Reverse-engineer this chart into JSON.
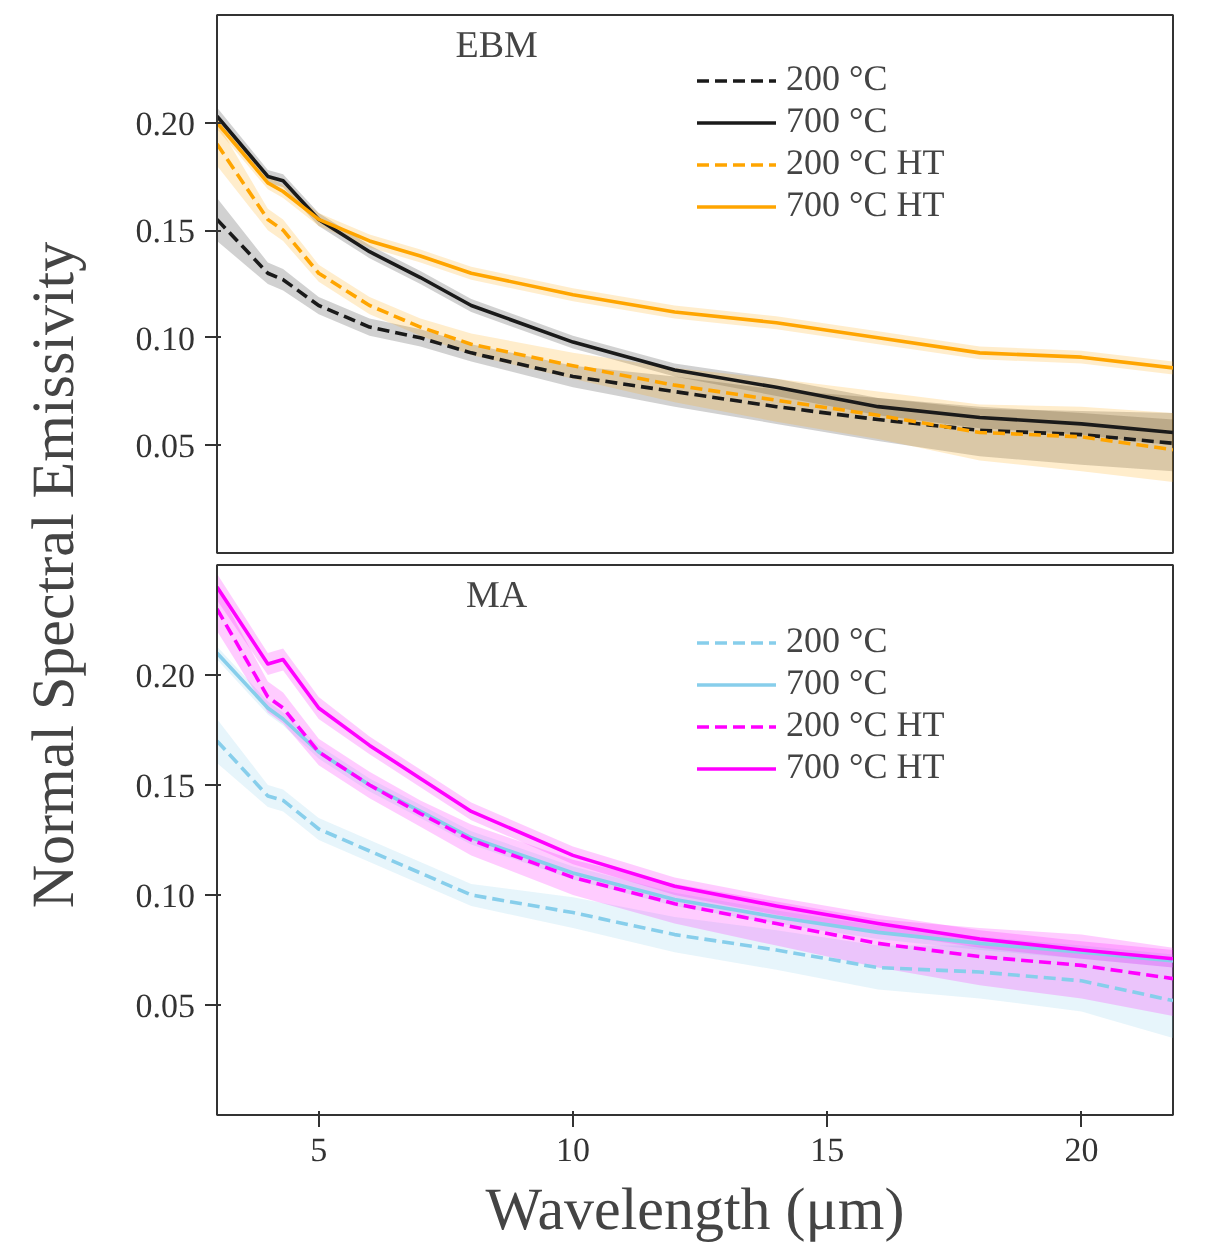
{
  "chart_data": [
    {
      "type": "line",
      "title": "EBM",
      "ylabel": "Normal Spectral Emissivity",
      "xlim": [
        3,
        21.8
      ],
      "ylim": [
        0,
        0.25
      ],
      "yticks": [
        {
          "value": 0.05,
          "label": "0.05"
        },
        {
          "value": 0.1,
          "label": "0.10"
        },
        {
          "value": 0.15,
          "label": "0.15"
        },
        {
          "value": 0.2,
          "label": "0.20"
        }
      ],
      "xticks": [
        5,
        10,
        15,
        20
      ],
      "tick_labels": "y",
      "grid": false,
      "legend": "top right",
      "x": [
        3,
        4,
        4.3,
        5,
        6,
        7,
        8,
        10,
        12,
        14,
        16,
        18,
        20,
        21.8
      ],
      "series": [
        {
          "name": "200 °C",
          "color": "#1a1a1a",
          "line_style": "dashed",
          "values": [
            0.155,
            0.13,
            0.127,
            0.115,
            0.105,
            0.1,
            0.093,
            0.082,
            0.075,
            0.068,
            0.062,
            0.057,
            0.055,
            0.051
          ],
          "lower": [
            0.145,
            0.125,
            0.122,
            0.111,
            0.101,
            0.096,
            0.089,
            0.077,
            0.068,
            0.06,
            0.052,
            0.045,
            0.041,
            0.038
          ],
          "upper": [
            0.165,
            0.135,
            0.132,
            0.119,
            0.109,
            0.104,
            0.097,
            0.087,
            0.082,
            0.076,
            0.072,
            0.067,
            0.066,
            0.065
          ]
        },
        {
          "name": "700 °C",
          "color": "#1a1a1a",
          "line_style": "solid",
          "values": [
            0.203,
            0.175,
            0.173,
            0.155,
            0.14,
            0.128,
            0.115,
            0.098,
            0.085,
            0.077,
            0.068,
            0.063,
            0.06,
            0.056
          ],
          "lower": [
            0.199,
            0.172,
            0.17,
            0.152,
            0.137,
            0.125,
            0.112,
            0.095,
            0.082,
            0.073,
            0.064,
            0.058,
            0.055,
            0.05
          ],
          "upper": [
            0.207,
            0.178,
            0.176,
            0.158,
            0.143,
            0.131,
            0.118,
            0.101,
            0.088,
            0.081,
            0.072,
            0.068,
            0.065,
            0.062
          ]
        },
        {
          "name": "200 °C HT",
          "color": "#ffa500",
          "line_style": "dashed",
          "values": [
            0.19,
            0.155,
            0.15,
            0.13,
            0.115,
            0.105,
            0.097,
            0.087,
            0.078,
            0.071,
            0.064,
            0.056,
            0.054,
            0.048
          ],
          "lower": [
            0.18,
            0.15,
            0.145,
            0.126,
            0.111,
            0.101,
            0.092,
            0.081,
            0.07,
            0.061,
            0.053,
            0.043,
            0.038,
            0.033
          ],
          "upper": [
            0.2,
            0.16,
            0.155,
            0.134,
            0.119,
            0.109,
            0.102,
            0.093,
            0.086,
            0.081,
            0.075,
            0.069,
            0.068,
            0.065
          ]
        },
        {
          "name": "700 °C HT",
          "color": "#ffa500",
          "line_style": "solid",
          "values": [
            0.2,
            0.172,
            0.168,
            0.155,
            0.145,
            0.138,
            0.13,
            0.12,
            0.112,
            0.107,
            0.1,
            0.093,
            0.091,
            0.086
          ],
          "lower": [
            0.197,
            0.169,
            0.165,
            0.152,
            0.142,
            0.135,
            0.127,
            0.117,
            0.109,
            0.104,
            0.097,
            0.09,
            0.088,
            0.083
          ],
          "upper": [
            0.203,
            0.175,
            0.171,
            0.158,
            0.148,
            0.141,
            0.133,
            0.123,
            0.115,
            0.11,
            0.103,
            0.096,
            0.094,
            0.089
          ]
        }
      ]
    },
    {
      "type": "line",
      "title": "MA",
      "xlabel": "Wavelength (μm)",
      "xlim": [
        3,
        21.8
      ],
      "ylim": [
        0,
        0.25
      ],
      "yticks": [
        {
          "value": 0.05,
          "label": "0.05"
        },
        {
          "value": 0.1,
          "label": "0.10"
        },
        {
          "value": 0.15,
          "label": "0.15"
        },
        {
          "value": 0.2,
          "label": "0.20"
        }
      ],
      "xticks": [
        5,
        10,
        15,
        20
      ],
      "grid": false,
      "legend": "top right",
      "x": [
        3,
        4,
        4.3,
        5,
        6,
        7,
        8,
        10,
        12,
        14,
        16,
        18,
        20,
        21.8
      ],
      "series": [
        {
          "name": "200 °C",
          "color": "#87ceeb",
          "line_style": "dashed",
          "values": [
            0.17,
            0.145,
            0.143,
            0.13,
            0.12,
            0.11,
            0.1,
            0.092,
            0.082,
            0.075,
            0.067,
            0.065,
            0.061,
            0.052
          ],
          "lower": [
            0.16,
            0.14,
            0.138,
            0.125,
            0.115,
            0.105,
            0.095,
            0.085,
            0.074,
            0.066,
            0.057,
            0.053,
            0.047,
            0.035
          ],
          "upper": [
            0.18,
            0.15,
            0.148,
            0.135,
            0.125,
            0.115,
            0.105,
            0.099,
            0.09,
            0.084,
            0.077,
            0.077,
            0.075,
            0.069
          ]
        },
        {
          "name": "700 °C",
          "color": "#87ceeb",
          "line_style": "solid",
          "values": [
            0.21,
            0.185,
            0.18,
            0.165,
            0.15,
            0.138,
            0.126,
            0.11,
            0.098,
            0.09,
            0.083,
            0.078,
            0.074,
            0.07
          ],
          "lower": [
            0.207,
            0.182,
            0.177,
            0.162,
            0.147,
            0.135,
            0.123,
            0.107,
            0.095,
            0.087,
            0.08,
            0.075,
            0.071,
            0.067
          ],
          "upper": [
            0.213,
            0.188,
            0.183,
            0.168,
            0.153,
            0.141,
            0.129,
            0.113,
            0.101,
            0.093,
            0.086,
            0.081,
            0.077,
            0.073
          ]
        },
        {
          "name": "200 °C HT",
          "color": "#ff00ff",
          "line_style": "dashed",
          "values": [
            0.23,
            0.19,
            0.185,
            0.165,
            0.15,
            0.137,
            0.125,
            0.108,
            0.096,
            0.087,
            0.078,
            0.072,
            0.068,
            0.062
          ],
          "lower": [
            0.22,
            0.183,
            0.178,
            0.159,
            0.144,
            0.131,
            0.118,
            0.1,
            0.087,
            0.077,
            0.067,
            0.059,
            0.053,
            0.045
          ],
          "upper": [
            0.24,
            0.197,
            0.192,
            0.171,
            0.156,
            0.143,
            0.132,
            0.116,
            0.105,
            0.097,
            0.089,
            0.085,
            0.082,
            0.076
          ]
        },
        {
          "name": "700 °C HT",
          "color": "#ff00ff",
          "line_style": "solid",
          "values": [
            0.24,
            0.205,
            0.207,
            0.185,
            0.168,
            0.153,
            0.138,
            0.118,
            0.104,
            0.095,
            0.087,
            0.08,
            0.075,
            0.071
          ],
          "lower": [
            0.234,
            0.2,
            0.202,
            0.18,
            0.164,
            0.149,
            0.134,
            0.114,
            0.1,
            0.091,
            0.083,
            0.076,
            0.071,
            0.067
          ],
          "upper": [
            0.246,
            0.21,
            0.212,
            0.19,
            0.172,
            0.157,
            0.142,
            0.122,
            0.108,
            0.099,
            0.091,
            0.084,
            0.079,
            0.075
          ]
        }
      ]
    }
  ]
}
